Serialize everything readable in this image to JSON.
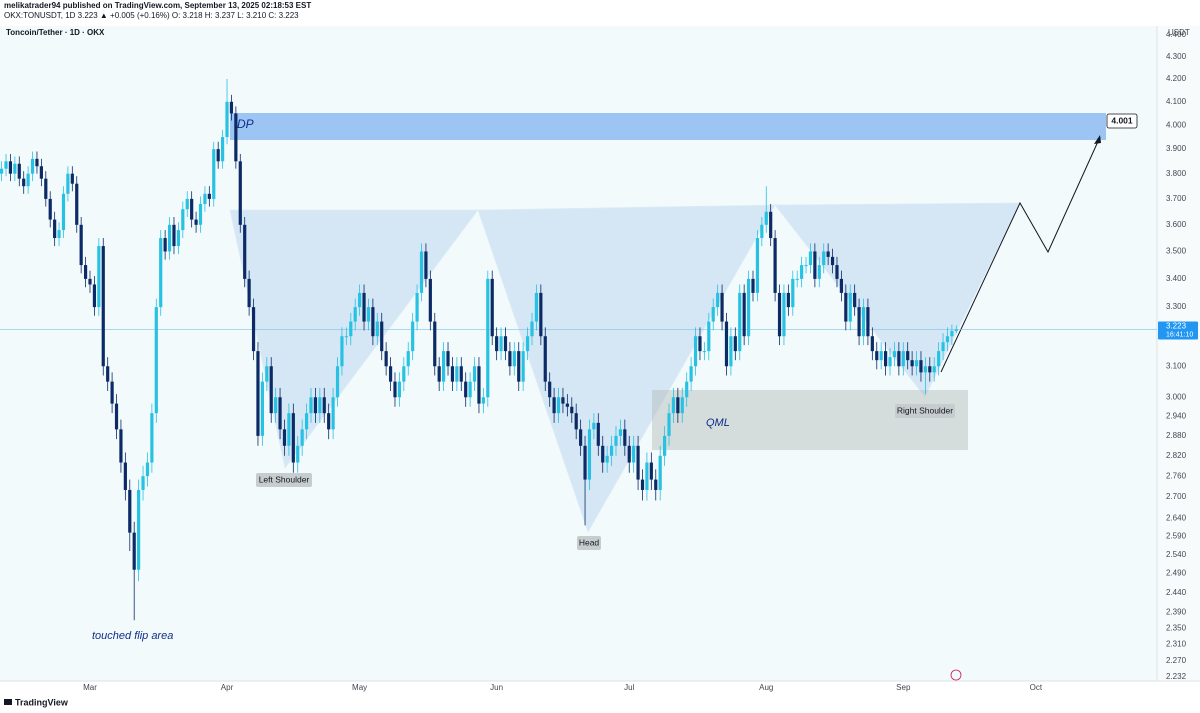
{
  "header": {
    "publisher": "melikatrader94 published on TradingView.com, September 13, 2025 02:18:53 EST",
    "legend": "OKX:TONUSDT, 1D  3.223  ▲ +0.005 (+0.16%)  O: 3.218  H: 3.237  L: 3.210  C: 3.223"
  },
  "footer": {
    "brand": "TradingView"
  },
  "chart_data": {
    "type": "candlestick",
    "title": "Toncoin/Tether · 1D · OKX",
    "y_axis_label": "USDT",
    "log_scale": true,
    "grid": false,
    "up_color": "#27c2e3",
    "down_color": "#0c2b66",
    "ylim": [
      2.232,
      4.4
    ],
    "yticks": [
      {
        "value": 4.4,
        "label": "4.400"
      },
      {
        "value": 4.3,
        "label": "4.300"
      },
      {
        "value": 4.2,
        "label": "4.200"
      },
      {
        "value": 4.1,
        "label": "4.100"
      },
      {
        "value": 4.0,
        "label": "4.000"
      },
      {
        "value": 3.9,
        "label": "3.900"
      },
      {
        "value": 3.8,
        "label": "3.800"
      },
      {
        "value": 3.7,
        "label": "3.700"
      },
      {
        "value": 3.6,
        "label": "3.600"
      },
      {
        "value": 3.5,
        "label": "3.500"
      },
      {
        "value": 3.4,
        "label": "3.400"
      },
      {
        "value": 3.3,
        "label": "3.300"
      },
      {
        "value": 3.1,
        "label": "3.100"
      },
      {
        "value": 3.0,
        "label": "3.000"
      },
      {
        "value": 2.94,
        "label": "2.940"
      },
      {
        "value": 2.88,
        "label": "2.880"
      },
      {
        "value": 2.82,
        "label": "2.820"
      },
      {
        "value": 2.76,
        "label": "2.760"
      },
      {
        "value": 2.7,
        "label": "2.700"
      },
      {
        "value": 2.64,
        "label": "2.640"
      },
      {
        "value": 2.59,
        "label": "2.590"
      },
      {
        "value": 2.54,
        "label": "2.540"
      },
      {
        "value": 2.49,
        "label": "2.490"
      },
      {
        "value": 2.44,
        "label": "2.440"
      },
      {
        "value": 2.39,
        "label": "2.390"
      },
      {
        "value": 2.35,
        "label": "2.350"
      },
      {
        "value": 2.31,
        "label": "2.310"
      },
      {
        "value": 2.27,
        "label": "2.270"
      },
      2.232
    ],
    "last_price": 3.223,
    "countdown": "16:41:10",
    "annotations": {
      "zone": "DP",
      "target": "4.001",
      "left_shoulder": "Left Shoulder",
      "head": "Head",
      "right_shoulder": "Right Shoulder",
      "qml": "QML",
      "flip": "touched flip area"
    },
    "categories": [
      null,
      null,
      null,
      null,
      null,
      null,
      null,
      null,
      null,
      null,
      null,
      null,
      null,
      null,
      null,
      null,
      null,
      null,
      null,
      null,
      "Mar",
      null,
      null,
      null,
      null,
      null,
      null,
      null,
      null,
      null,
      null,
      null,
      null,
      null,
      null,
      null,
      null,
      null,
      null,
      null,
      null,
      null,
      null,
      null,
      null,
      null,
      null,
      null,
      null,
      null,
      null,
      "Apr",
      null,
      null,
      null,
      null,
      null,
      null,
      null,
      null,
      null,
      null,
      null,
      null,
      null,
      null,
      null,
      null,
      null,
      null,
      null,
      null,
      null,
      null,
      null,
      null,
      null,
      null,
      null,
      null,
      null,
      "May",
      null,
      null,
      null,
      null,
      null,
      null,
      null,
      null,
      null,
      null,
      null,
      null,
      null,
      null,
      null,
      null,
      null,
      null,
      null,
      null,
      null,
      null,
      null,
      null,
      null,
      null,
      null,
      null,
      null,
      null,
      "Jun",
      null,
      null,
      null,
      null,
      null,
      null,
      null,
      null,
      null,
      null,
      null,
      null,
      null,
      null,
      null,
      null,
      null,
      null,
      null,
      null,
      null,
      null,
      null,
      null,
      null,
      null,
      null,
      null,
      null,
      "Jul",
      null,
      null,
      null,
      null,
      null,
      null,
      null,
      null,
      null,
      null,
      null,
      null,
      null,
      null,
      null,
      null,
      null,
      null,
      null,
      null,
      null,
      null,
      null,
      null,
      null,
      null,
      null,
      null,
      null,
      null,
      "Aug",
      null,
      null,
      null,
      null,
      null,
      null,
      null,
      null,
      null,
      null,
      null,
      null,
      null,
      null,
      null,
      null,
      null,
      null,
      null,
      null,
      null,
      null,
      null,
      null,
      null,
      null,
      null,
      null,
      null,
      null,
      "Sep",
      null,
      null,
      null,
      null,
      null,
      null,
      null,
      null,
      null,
      null,
      null,
      null,
      null,
      null,
      null,
      null,
      null,
      null,
      null,
      null,
      null,
      null,
      null,
      null,
      null,
      null,
      null,
      null,
      null,
      "Oct"
    ],
    "open": [
      3.8,
      3.82,
      3.85,
      3.8,
      3.84,
      3.78,
      3.75,
      3.8,
      3.86,
      3.83,
      3.78,
      3.7,
      3.62,
      3.55,
      3.58,
      3.72,
      3.8,
      3.76,
      3.6,
      3.45,
      3.4,
      3.38,
      3.3,
      3.52,
      3.1,
      3.05,
      2.98,
      2.9,
      2.8,
      2.72,
      2.6,
      2.5,
      2.72,
      2.76,
      2.8,
      2.95,
      3.3,
      3.55,
      3.5,
      3.6,
      3.52,
      3.58,
      3.66,
      3.7,
      3.62,
      3.6,
      3.68,
      3.72,
      3.7,
      3.9,
      3.85,
      3.95,
      4.1,
      4.05,
      3.85,
      3.6,
      3.4,
      3.3,
      3.15,
      2.88,
      3.05,
      3.1,
      2.95,
      3.0,
      2.9,
      2.85,
      2.95,
      2.8,
      2.85,
      2.9,
      2.95,
      3.0,
      2.95,
      3.0,
      2.95,
      2.9,
      3.0,
      3.1,
      3.2,
      3.2,
      3.25,
      3.3,
      3.35,
      3.25,
      3.3,
      3.2,
      3.25,
      3.15,
      3.1,
      3.05,
      3.0,
      3.05,
      3.1,
      3.15,
      3.25,
      3.35,
      3.5,
      3.4,
      3.25,
      3.1,
      3.05,
      3.15,
      3.1,
      3.05,
      3.1,
      3.05,
      3.0,
      3.05,
      3.1,
      2.98,
      3.0,
      3.4,
      3.2,
      3.15,
      3.2,
      3.15,
      3.1,
      3.15,
      3.05,
      3.15,
      3.2,
      3.25,
      3.35,
      3.2,
      3.05,
      3.0,
      2.95,
      3.0,
      2.98,
      2.97,
      2.95,
      2.9,
      2.85,
      2.75,
      2.9,
      2.92,
      2.85,
      2.8,
      2.82,
      2.85,
      2.88,
      2.9,
      2.85,
      2.8,
      2.85,
      2.75,
      2.72,
      2.8,
      2.75,
      2.72,
      2.82,
      2.88,
      2.95,
      3.0,
      2.95,
      3.0,
      3.05,
      3.1,
      3.2,
      3.15,
      3.15,
      3.25,
      3.3,
      3.35,
      3.25,
      3.1,
      3.2,
      3.15,
      3.35,
      3.2,
      3.4,
      3.35,
      3.55,
      3.6,
      3.65,
      3.55,
      3.35,
      3.2,
      3.35,
      3.3,
      3.4,
      3.4,
      3.45,
      3.45,
      3.5,
      3.4,
      3.45,
      3.5,
      3.48,
      3.45,
      3.4,
      3.35,
      3.25,
      3.35,
      3.3,
      3.2,
      3.3,
      3.2,
      3.15,
      3.12,
      3.15,
      3.1,
      3.13,
      3.15,
      3.1,
      3.15,
      3.12,
      3.1,
      3.12,
      3.08,
      3.1,
      3.08,
      3.1,
      3.15,
      3.18,
      3.2,
      3.218,
      null,
      null,
      null,
      null,
      null,
      null,
      null,
      null,
      null,
      null,
      null,
      null,
      null,
      null,
      null,
      null,
      null,
      null
    ],
    "high": [
      3.85,
      3.88,
      3.88,
      3.87,
      3.87,
      3.81,
      3.83,
      3.89,
      3.89,
      3.86,
      3.81,
      3.73,
      3.65,
      3.61,
      3.75,
      3.83,
      3.83,
      3.79,
      3.63,
      3.48,
      3.43,
      3.41,
      3.55,
      3.55,
      3.13,
      3.08,
      3.01,
      2.93,
      2.83,
      2.75,
      2.63,
      2.75,
      2.79,
      2.83,
      2.98,
      3.33,
      3.58,
      3.58,
      3.63,
      3.63,
      3.61,
      3.69,
      3.73,
      3.73,
      3.65,
      3.71,
      3.75,
      3.75,
      3.93,
      3.93,
      3.98,
      4.2,
      4.13,
      4.08,
      3.88,
      3.63,
      3.43,
      3.33,
      3.18,
      3.08,
      3.13,
      3.13,
      3.03,
      3.03,
      2.93,
      2.98,
      2.98,
      2.88,
      2.93,
      2.98,
      3.03,
      3.03,
      3.03,
      3.03,
      2.98,
      3.03,
      3.13,
      3.23,
      3.23,
      3.28,
      3.33,
      3.38,
      3.38,
      3.33,
      3.33,
      3.28,
      3.28,
      3.18,
      3.13,
      3.08,
      3.08,
      3.13,
      3.18,
      3.28,
      3.38,
      3.53,
      3.53,
      3.43,
      3.28,
      3.13,
      3.18,
      3.18,
      3.13,
      3.13,
      3.13,
      3.08,
      3.08,
      3.13,
      3.13,
      3.03,
      3.43,
      3.43,
      3.23,
      3.23,
      3.23,
      3.18,
      3.18,
      3.18,
      3.18,
      3.23,
      3.28,
      3.38,
      3.38,
      3.23,
      3.08,
      3.03,
      3.03,
      3.03,
      3.01,
      3.0,
      2.98,
      2.93,
      2.88,
      2.93,
      2.95,
      2.95,
      2.88,
      2.85,
      2.88,
      2.91,
      2.93,
      2.93,
      2.88,
      2.88,
      2.88,
      2.78,
      2.83,
      2.83,
      2.78,
      2.85,
      2.91,
      2.98,
      3.03,
      3.03,
      3.03,
      3.08,
      3.13,
      3.23,
      3.23,
      3.18,
      3.28,
      3.33,
      3.38,
      3.38,
      3.28,
      3.23,
      3.23,
      3.38,
      3.38,
      3.43,
      3.43,
      3.58,
      3.63,
      3.75,
      3.68,
      3.58,
      3.38,
      3.38,
      3.38,
      3.43,
      3.43,
      3.48,
      3.48,
      3.53,
      3.53,
      3.48,
      3.53,
      3.53,
      3.51,
      3.48,
      3.43,
      3.38,
      3.38,
      3.38,
      3.33,
      3.33,
      3.33,
      3.23,
      3.18,
      3.18,
      3.18,
      3.16,
      3.18,
      3.18,
      3.18,
      3.18,
      3.15,
      3.15,
      3.15,
      3.13,
      3.13,
      3.13,
      3.18,
      3.21,
      3.23,
      3.24,
      3.237,
      null,
      null,
      null,
      null,
      null,
      null,
      null,
      null,
      null,
      null,
      null,
      null,
      null,
      null,
      null,
      null,
      null,
      null
    ],
    "low": [
      3.77,
      3.79,
      3.77,
      3.77,
      3.75,
      3.72,
      3.72,
      3.77,
      3.8,
      3.75,
      3.67,
      3.59,
      3.52,
      3.52,
      3.55,
      3.69,
      3.73,
      3.57,
      3.42,
      3.37,
      3.35,
      3.27,
      3.27,
      3.07,
      3.02,
      2.95,
      2.87,
      2.77,
      2.69,
      2.55,
      2.37,
      2.47,
      2.69,
      2.73,
      2.77,
      2.92,
      3.27,
      3.47,
      3.47,
      3.49,
      3.49,
      3.55,
      3.63,
      3.59,
      3.57,
      3.57,
      3.65,
      3.67,
      3.67,
      3.82,
      3.82,
      3.92,
      4.02,
      3.82,
      3.57,
      3.37,
      3.27,
      3.12,
      2.85,
      2.85,
      3.02,
      2.92,
      2.92,
      2.87,
      2.82,
      2.82,
      2.77,
      2.77,
      2.82,
      2.87,
      2.92,
      2.92,
      2.92,
      2.92,
      2.87,
      2.87,
      2.97,
      3.07,
      3.17,
      3.17,
      3.22,
      3.27,
      3.22,
      3.22,
      3.17,
      3.17,
      3.12,
      3.07,
      3.02,
      2.97,
      2.97,
      3.02,
      3.07,
      3.12,
      3.22,
      3.32,
      3.37,
      3.22,
      3.07,
      3.02,
      3.02,
      3.07,
      3.02,
      3.02,
      3.02,
      2.97,
      2.97,
      3.02,
      2.95,
      2.95,
      2.97,
      3.17,
      3.12,
      3.12,
      3.12,
      3.07,
      3.07,
      3.02,
      3.02,
      3.12,
      3.17,
      3.22,
      3.17,
      3.02,
      2.97,
      2.92,
      2.92,
      2.95,
      2.94,
      2.92,
      2.87,
      2.82,
      2.62,
      2.72,
      2.87,
      2.82,
      2.77,
      2.77,
      2.79,
      2.82,
      2.85,
      2.82,
      2.77,
      2.77,
      2.72,
      2.69,
      2.69,
      2.72,
      2.69,
      2.69,
      2.79,
      2.85,
      2.92,
      2.92,
      2.92,
      2.97,
      3.02,
      3.07,
      3.12,
      3.12,
      3.12,
      3.22,
      3.27,
      3.22,
      3.07,
      3.07,
      3.12,
      3.12,
      3.17,
      3.17,
      3.32,
      3.32,
      3.52,
      3.57,
      3.52,
      3.32,
      3.17,
      3.17,
      3.27,
      3.27,
      3.37,
      3.37,
      3.42,
      3.42,
      3.37,
      3.37,
      3.42,
      3.45,
      3.42,
      3.37,
      3.32,
      3.22,
      3.22,
      3.27,
      3.17,
      3.17,
      3.17,
      3.12,
      3.09,
      3.09,
      3.07,
      3.07,
      3.1,
      3.07,
      3.07,
      3.09,
      3.07,
      3.07,
      3.05,
      3.01,
      3.05,
      3.05,
      3.07,
      3.12,
      3.15,
      3.17,
      3.21,
      null,
      null,
      null,
      null,
      null,
      null,
      null,
      null,
      null,
      null,
      null,
      null,
      null,
      null,
      null,
      null,
      null,
      null
    ],
    "close": [
      3.82,
      3.85,
      3.8,
      3.84,
      3.78,
      3.75,
      3.8,
      3.86,
      3.83,
      3.78,
      3.7,
      3.62,
      3.55,
      3.58,
      3.72,
      3.8,
      3.76,
      3.6,
      3.45,
      3.4,
      3.38,
      3.3,
      3.52,
      3.1,
      3.05,
      2.98,
      2.9,
      2.8,
      2.72,
      2.6,
      2.5,
      2.72,
      2.76,
      2.8,
      2.95,
      3.3,
      3.55,
      3.5,
      3.6,
      3.52,
      3.58,
      3.66,
      3.7,
      3.62,
      3.6,
      3.68,
      3.72,
      3.7,
      3.9,
      3.85,
      3.95,
      4.1,
      4.05,
      3.85,
      3.6,
      3.4,
      3.3,
      3.15,
      2.88,
      3.05,
      3.1,
      2.95,
      3.0,
      2.9,
      2.85,
      2.95,
      2.8,
      2.85,
      2.9,
      2.95,
      3.0,
      2.95,
      3.0,
      2.95,
      2.9,
      3.0,
      3.1,
      3.2,
      3.2,
      3.25,
      3.3,
      3.35,
      3.25,
      3.3,
      3.2,
      3.25,
      3.15,
      3.1,
      3.05,
      3.0,
      3.05,
      3.1,
      3.15,
      3.25,
      3.35,
      3.5,
      3.4,
      3.25,
      3.1,
      3.05,
      3.15,
      3.1,
      3.05,
      3.1,
      3.05,
      3.0,
      3.05,
      3.1,
      2.98,
      3.0,
      3.4,
      3.2,
      3.15,
      3.2,
      3.15,
      3.1,
      3.15,
      3.05,
      3.15,
      3.2,
      3.25,
      3.35,
      3.2,
      3.05,
      3.0,
      2.95,
      3.0,
      2.98,
      2.97,
      2.95,
      2.9,
      2.85,
      2.75,
      2.9,
      2.92,
      2.85,
      2.8,
      2.82,
      2.85,
      2.88,
      2.9,
      2.85,
      2.8,
      2.85,
      2.75,
      2.72,
      2.8,
      2.75,
      2.72,
      2.82,
      2.88,
      2.95,
      3.0,
      2.95,
      3.0,
      3.05,
      3.1,
      3.2,
      3.15,
      3.15,
      3.25,
      3.3,
      3.35,
      3.25,
      3.1,
      3.2,
      3.15,
      3.35,
      3.2,
      3.4,
      3.35,
      3.55,
      3.6,
      3.65,
      3.55,
      3.35,
      3.2,
      3.35,
      3.3,
      3.4,
      3.4,
      3.45,
      3.45,
      3.5,
      3.4,
      3.45,
      3.5,
      3.48,
      3.45,
      3.4,
      3.35,
      3.25,
      3.35,
      3.3,
      3.2,
      3.3,
      3.2,
      3.15,
      3.12,
      3.15,
      3.1,
      3.13,
      3.15,
      3.1,
      3.15,
      3.12,
      3.1,
      3.12,
      3.08,
      3.1,
      3.08,
      3.1,
      3.15,
      3.18,
      3.2,
      3.218,
      3.223,
      null,
      null,
      null,
      null,
      null,
      null,
      null,
      null,
      null,
      null,
      null,
      null,
      null,
      null,
      null,
      null,
      null,
      null
    ]
  }
}
